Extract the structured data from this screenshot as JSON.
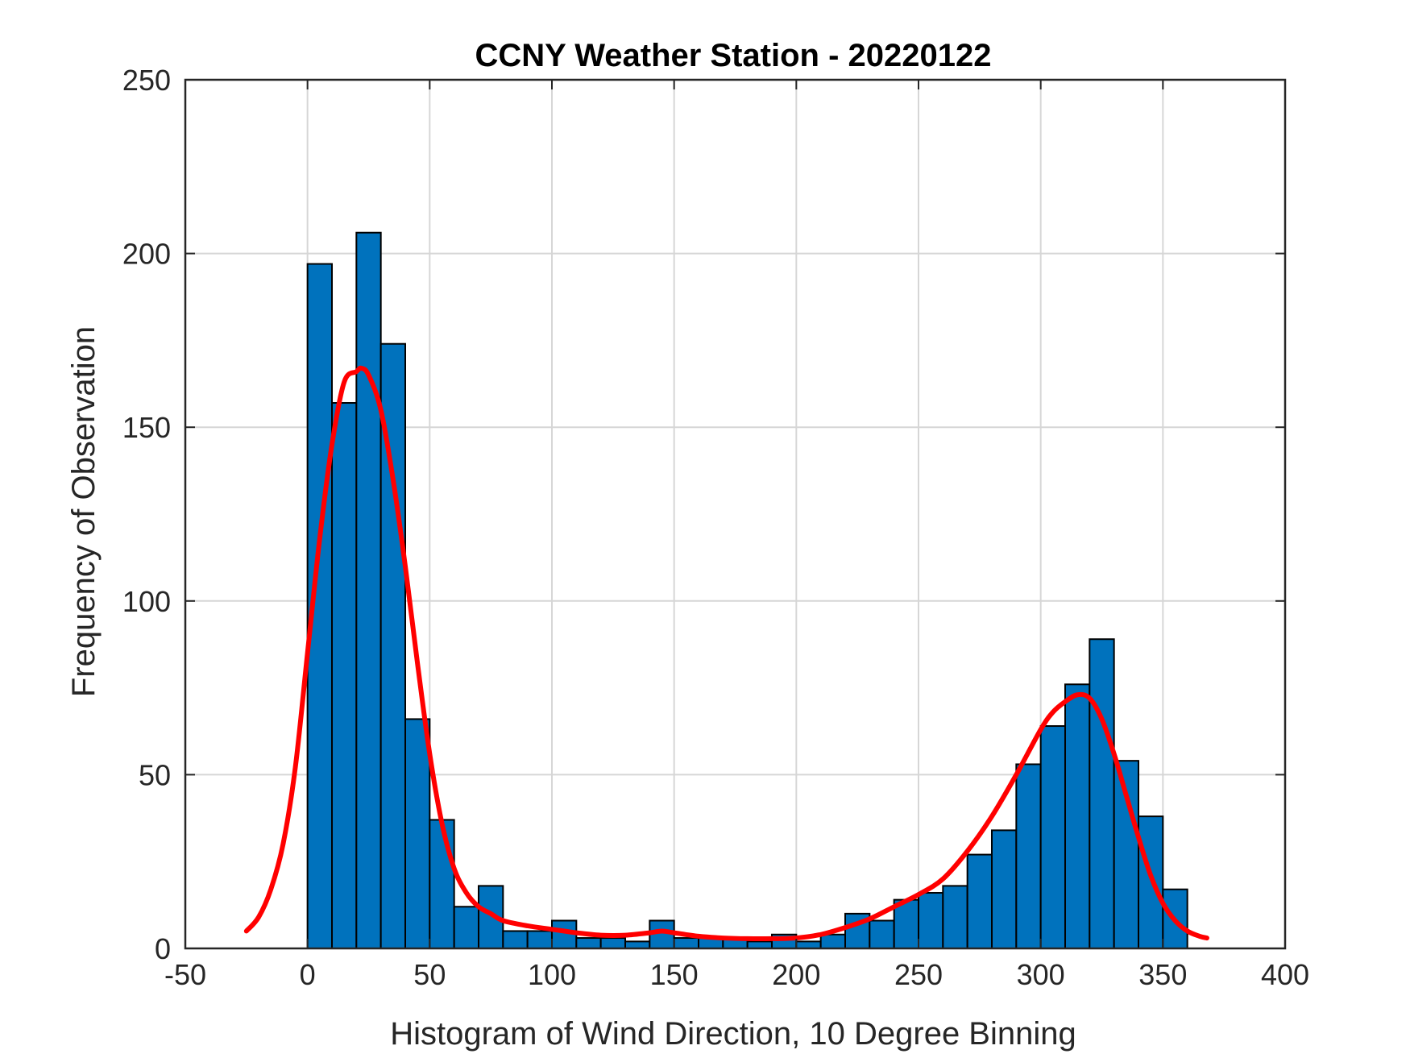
{
  "chart_data": {
    "type": "bar",
    "title": "CCNY Weather Station - 20220122",
    "xlabel": "Histogram of Wind Direction, 10 Degree Binning",
    "ylabel": "Frequency of Observation",
    "xlim": [
      -50,
      400
    ],
    "ylim": [
      0,
      250
    ],
    "xticks": [
      -50,
      0,
      50,
      100,
      150,
      200,
      250,
      300,
      350,
      400
    ],
    "yticks": [
      0,
      50,
      100,
      150,
      200,
      250
    ],
    "grid": true,
    "bin_width": 10,
    "bin_edges_start": [
      0,
      10,
      20,
      30,
      40,
      50,
      60,
      70,
      80,
      90,
      100,
      110,
      120,
      130,
      140,
      150,
      160,
      170,
      180,
      190,
      200,
      210,
      220,
      230,
      240,
      250,
      260,
      270,
      280,
      290,
      300,
      310,
      320,
      330,
      340,
      350
    ],
    "values": [
      197,
      157,
      206,
      174,
      66,
      37,
      12,
      18,
      5,
      5,
      8,
      3,
      3,
      2,
      8,
      3,
      3,
      3,
      2,
      4,
      2,
      4,
      10,
      8,
      14,
      16,
      18,
      27,
      34,
      53,
      64,
      76,
      89,
      54,
      38,
      17
    ],
    "bar_color": "#0072BD",
    "bar_edge_color": "#000000",
    "fit_curve": {
      "color": "#FF0000",
      "x": [
        -25,
        -20,
        -15,
        -10,
        -5,
        0,
        5,
        10,
        15,
        20,
        22,
        25,
        30,
        35,
        40,
        45,
        50,
        55,
        60,
        65,
        70,
        75,
        80,
        90,
        100,
        110,
        120,
        130,
        140,
        145,
        150,
        160,
        170,
        180,
        190,
        200,
        210,
        220,
        230,
        240,
        250,
        260,
        270,
        280,
        290,
        300,
        305,
        310,
        315,
        320,
        325,
        330,
        335,
        340,
        345,
        350,
        355,
        360,
        365,
        368
      ],
      "y": [
        5,
        9,
        17,
        30,
        52,
        85,
        118,
        145,
        163,
        166,
        167,
        165,
        155,
        135,
        110,
        82,
        56,
        36,
        23,
        16,
        12,
        10,
        8,
        6.5,
        5.5,
        4.5,
        3.8,
        3.8,
        4.5,
        5,
        4.5,
        3.5,
        3,
        2.8,
        2.8,
        3,
        4,
        6,
        8.5,
        12,
        15.5,
        20,
        28,
        38,
        50,
        63,
        68,
        71,
        73,
        72,
        66,
        56,
        44,
        32,
        21,
        13,
        8,
        5,
        3.5,
        3
      ]
    }
  }
}
